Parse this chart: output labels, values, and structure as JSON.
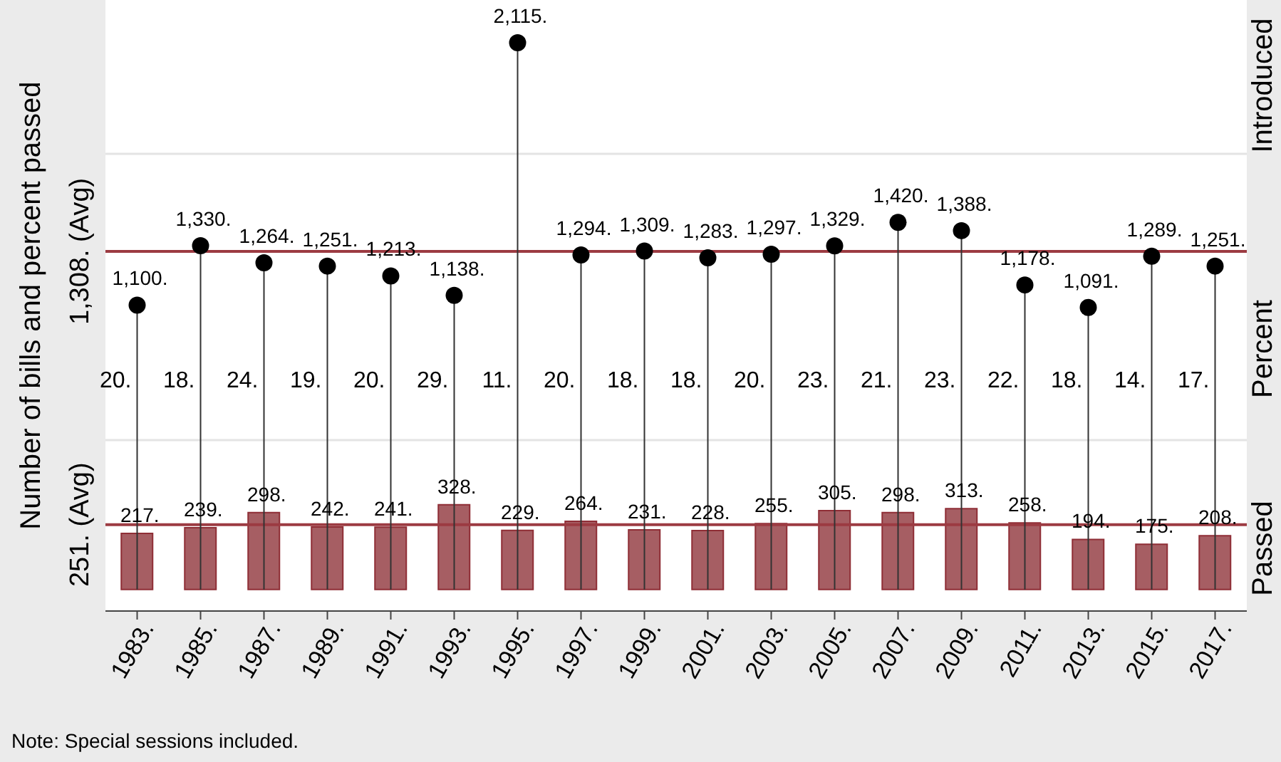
{
  "chart_data": {
    "type": "bar",
    "ylabel": "Number of bills and percent passed",
    "categories": [
      "1983.",
      "1985.",
      "1987.",
      "1989.",
      "1991.",
      "1993.",
      "1995.",
      "1997.",
      "1999.",
      "2001.",
      "2003.",
      "2005.",
      "2007.",
      "2009.",
      "2011.",
      "2013.",
      "2015.",
      "2017."
    ],
    "series": [
      {
        "name": "Passed",
        "color": "#a65e63",
        "values": [
          217,
          239,
          298,
          242,
          241,
          328,
          229,
          264,
          231,
          228,
          255,
          305,
          298,
          313,
          258,
          194,
          175,
          208
        ],
        "value_labels": [
          "217.",
          "239.",
          "298.",
          "242.",
          "241.",
          "328.",
          "229.",
          "264.",
          "231.",
          "228.",
          "255.",
          "305.",
          "298.",
          "313.",
          "258.",
          "194.",
          "175.",
          "208."
        ]
      },
      {
        "name": "Introduced",
        "type": "lollipop",
        "color": "#000000",
        "values": [
          1100,
          1330,
          1264,
          1251,
          1213,
          1138,
          2115,
          1294,
          1309,
          1283,
          1297,
          1329,
          1420,
          1388,
          1178,
          1091,
          1289,
          1251
        ],
        "value_labels": [
          "1,100.",
          "1,330.",
          "1,264.",
          "1,251.",
          "1,213.",
          "1,138.",
          "2,115.",
          "1,294.",
          "1,309.",
          "1,283.",
          "1,297.",
          "1,329.",
          "1,420.",
          "1,388.",
          "1,178.",
          "1,091.",
          "1,289.",
          "1,251."
        ]
      }
    ],
    "ylim": [
      -83,
      2280
    ],
    "yticks": [
      {
        "value": 578,
        "label": null
      },
      {
        "value": 1685,
        "label": null
      }
    ],
    "grid": "y",
    "marker": "circle",
    "ref_lines": [
      {
        "axis": "y",
        "value": 251,
        "label": "251. (Avg)",
        "color": "#9c3b42"
      },
      {
        "axis": "y",
        "value": 1308,
        "label": "1,308. (Avg)",
        "color": "#9c3b42"
      }
    ],
    "annotations": [
      "Percent",
      "Note: Special sessions included.",
      "20.",
      "18.",
      "24.",
      "19.",
      "20.",
      "29.",
      "11.",
      "20.",
      "18.",
      "18.",
      "20.",
      "23.",
      "21.",
      "23.",
      "22.",
      "18.",
      "14.",
      "17."
    ]
  }
}
